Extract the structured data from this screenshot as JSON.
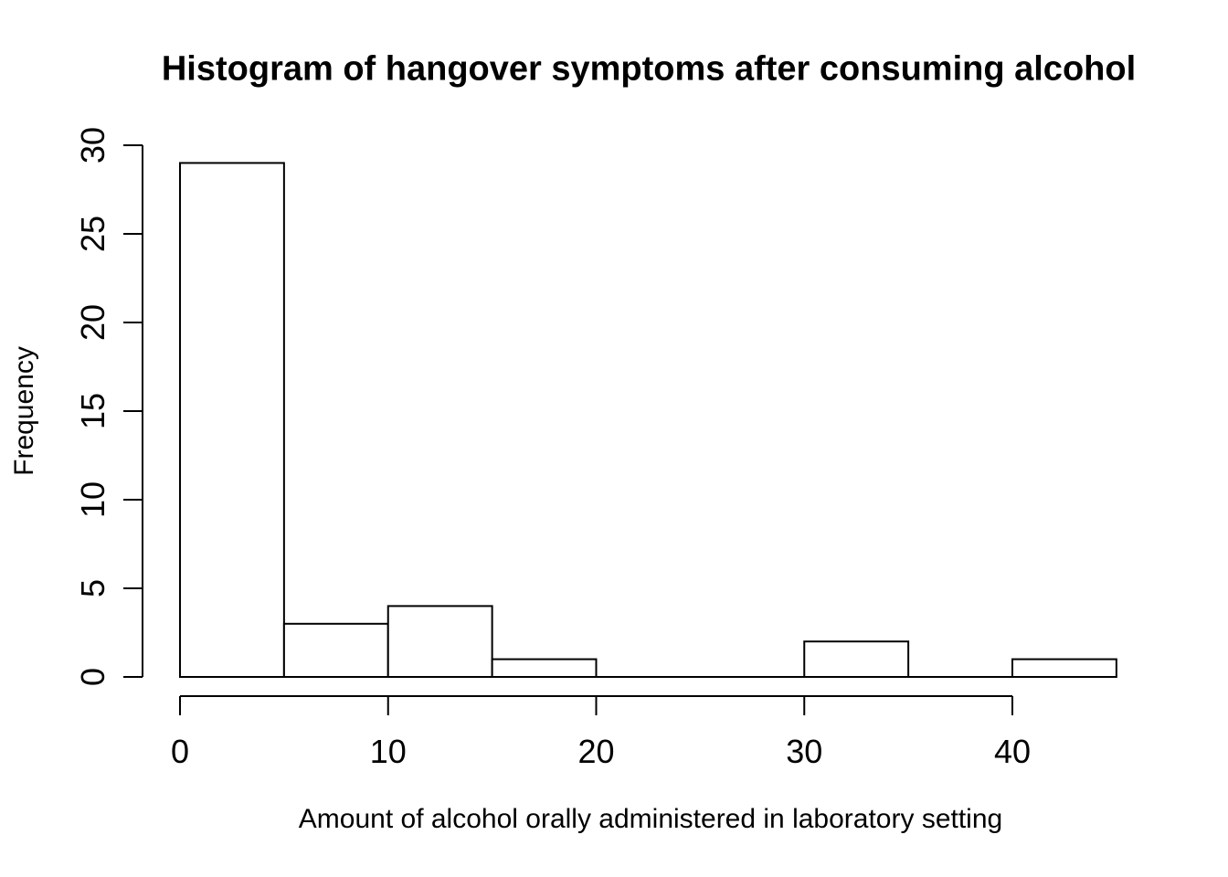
{
  "chart_data": {
    "type": "bar",
    "subtype": "histogram",
    "title": "Histogram of hangover symptoms after consuming alcohol",
    "xlabel": "Amount of alcohol orally administered in laboratory setting",
    "ylabel": "Frequency",
    "bin_breaks": [
      0,
      5,
      10,
      15,
      20,
      25,
      30,
      35,
      40,
      45
    ],
    "counts": [
      29,
      3,
      4,
      1,
      0,
      0,
      2,
      0,
      1
    ],
    "xticks": [
      0,
      10,
      20,
      30,
      40
    ],
    "yticks": [
      0,
      5,
      10,
      15,
      20,
      25,
      30
    ],
    "xlim": [
      0,
      45
    ],
    "ylim": [
      0,
      30
    ],
    "grid": false,
    "legend": "none",
    "bar_fill_color": "#ffffff",
    "line_color": "#000000",
    "background_color": "#ffffff"
  }
}
